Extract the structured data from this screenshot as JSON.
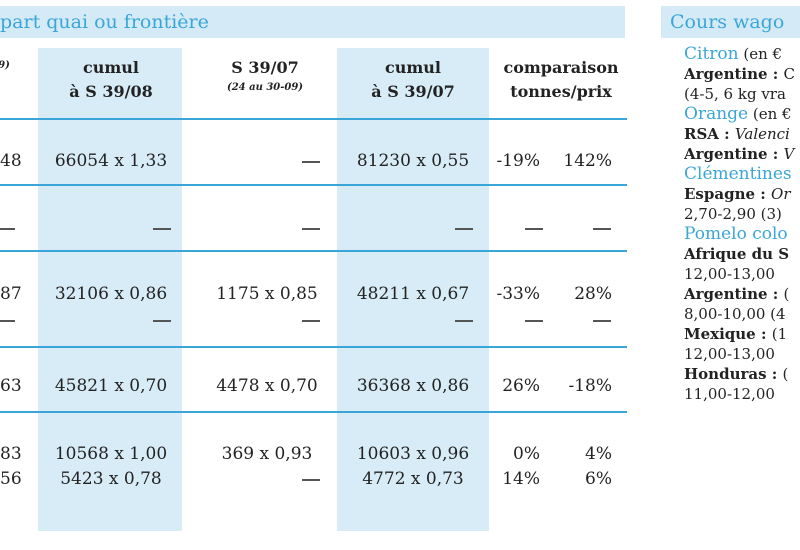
{
  "left_header": "part quai ou frontière",
  "right_header": "Cours wago",
  "columns": [
    {
      "line1": "",
      "line2": "9)"
    },
    {
      "line1": "cumul",
      "line2": "à S 39/08"
    },
    {
      "line1": "S 39/07",
      "line2": "(24 au 30-09)"
    },
    {
      "line1": "cumul",
      "line2": "à S 39/07"
    },
    {
      "line1": "comparaison",
      "line2": "tonnes/prix"
    }
  ],
  "rows": [
    {
      "c0": "48",
      "c1": "66054 x 1,33",
      "c2": "—",
      "c3": "81230 x 0,55",
      "c4": "-19%",
      "c5": "142%"
    },
    {
      "c0": "—",
      "c1": "—",
      "c2": "—",
      "c3": "—",
      "c4": "—",
      "c5": "—"
    },
    {
      "c0": "87",
      "c1": "32106 x 0,86",
      "c2": "1175 x 0,85",
      "c3": "48211 x 0,67",
      "c4": "-33%",
      "c5": "28%"
    },
    {
      "c0": "63",
      "c1": "45821 x 0,70",
      "c2": "4478 x 0,70",
      "c3": "36368 x 0,86",
      "c4": "26%",
      "c5": "-18%"
    },
    {
      "c0": "83",
      "c1": "10568 x 1,00",
      "c2": "369 x 0,93",
      "c3": "10603 x 0,96",
      "c4": "0%",
      "c5": "4%"
    },
    {
      "c0": "56",
      "c1": "5423 x 0,78",
      "c2": "—",
      "c3": "4772 x 0,73",
      "c4": "14%",
      "c5": "6%"
    }
  ],
  "right_lines": [
    {
      "fruit": "Citron",
      "rest": " (en €"
    },
    {
      "bold": "Argentine : ",
      "rest": "C"
    },
    {
      "rest": "(4-5, 6 kg vra"
    },
    {
      "fruit": "Orange",
      "rest": " (en €"
    },
    {
      "bold": "RSA : ",
      "italic": "Valenci"
    },
    {
      "bold": "Argentine : ",
      "italic": "V"
    },
    {
      "fruit": "Clémentines"
    },
    {
      "bold": "Espagne : ",
      "italic": "Or"
    },
    {
      "rest": "2,70-2,90 (3)"
    },
    {
      "fruit": "Pomelo colo"
    },
    {
      "bold": "Afrique du S"
    },
    {
      "rest": "12,00-13,00"
    },
    {
      "bold": "Argentine : ",
      "rest": "("
    },
    {
      "rest": "8,00-10,00 (4"
    },
    {
      "bold": "Mexique : ",
      "rest": "(1"
    },
    {
      "rest": "12,00-13,00"
    },
    {
      "bold": "Honduras : ",
      "rest": "("
    },
    {
      "rest": "11,00-12,00"
    }
  ]
}
